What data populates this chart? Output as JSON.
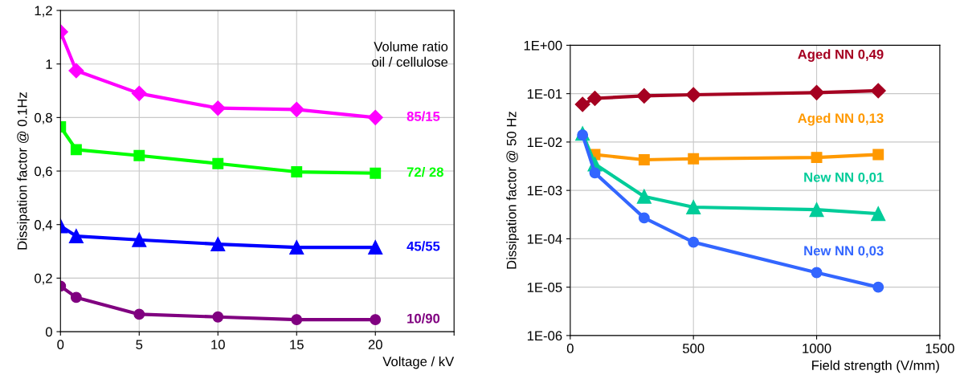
{
  "chart_data": [
    {
      "type": "line",
      "xlabel": "Voltage / kV",
      "ylabel": "Dissipation factor @ 0.1Hz",
      "annotations": [
        "Volume ratio\noil / cellulose"
      ],
      "xlim": [
        0,
        25
      ],
      "xticks": [
        0,
        5,
        10,
        15,
        20,
        {
          "value": 25,
          "label": null
        }
      ],
      "ylim": [
        0,
        1.2
      ],
      "yticks": [
        0,
        {
          "value": 0.2,
          "label": "0,2"
        },
        {
          "value": 0.4,
          "label": "0,4"
        },
        {
          "value": 0.6,
          "label": "0,6"
        },
        {
          "value": 0.8,
          "label": "0,8"
        },
        1,
        {
          "value": 1.2,
          "label": "1,2"
        }
      ],
      "grid": true,
      "legend": false,
      "x": [
        0,
        1,
        5,
        10,
        15,
        20
      ],
      "series": [
        {
          "name": "85/15",
          "color": "#ff00ff",
          "marker": "diamond",
          "values": [
            1.12,
            0.975,
            0.89,
            0.835,
            0.83,
            0.8
          ]
        },
        {
          "name": "72/ 28",
          "color": "#00ff00",
          "marker": "square",
          "values": [
            0.765,
            0.68,
            0.658,
            0.628,
            0.597,
            0.592
          ]
        },
        {
          "name": "45/55",
          "color": "#0000ff",
          "marker": "triangle",
          "values": [
            0.395,
            0.357,
            0.343,
            0.327,
            0.315,
            0.315
          ]
        },
        {
          "name": "10/90",
          "color": "#800080",
          "marker": "circle",
          "values": [
            0.17,
            0.128,
            0.065,
            0.055,
            0.045,
            0.045
          ]
        }
      ]
    },
    {
      "type": "line",
      "xlabel": "Field strength (V/mm)",
      "ylabel": "Dissipation factor @ 50 Hz",
      "log": "y",
      "xlim": [
        0,
        1500
      ],
      "xticks": [
        0,
        500,
        1000,
        1500
      ],
      "ylim": [
        1e-06,
        1
      ],
      "yticks": [
        {
          "value": 1e-06,
          "label": "1E-06"
        },
        {
          "value": 1e-05,
          "label": "1E-05"
        },
        {
          "value": 0.0001,
          "label": "1E-04"
        },
        {
          "value": 0.001,
          "label": "1E-03"
        },
        {
          "value": 0.01,
          "label": "1E-02"
        },
        {
          "value": 0.1,
          "label": "1E-01"
        },
        {
          "value": 1,
          "label": "1E+00"
        }
      ],
      "grid": true,
      "legend": false,
      "series": [
        {
          "name": "Aged NN 0,49",
          "color": "#a50021",
          "marker": "diamond",
          "x": [
            50,
            100,
            300,
            500,
            1000,
            1250
          ],
          "values": [
            0.06,
            0.08,
            0.09,
            0.095,
            0.105,
            0.115
          ]
        },
        {
          "name": "Aged NN 0,13",
          "color": "#ff9900",
          "marker": "square",
          "x": [
            100,
            300,
            500,
            1000,
            1250
          ],
          "values": [
            0.0055,
            0.0043,
            0.0045,
            0.0048,
            0.0055
          ]
        },
        {
          "name": "New NN 0,01",
          "color": "#00cc99",
          "marker": "triangle",
          "x": [
            50,
            100,
            300,
            500,
            1000,
            1250
          ],
          "values": [
            0.015,
            0.0035,
            0.00075,
            0.00045,
            0.0004,
            0.00033
          ]
        },
        {
          "name": "New NN 0,03",
          "color": "#3366ff",
          "marker": "circle",
          "x": [
            50,
            100,
            300,
            500,
            1000,
            1250
          ],
          "values": [
            0.014,
            0.0023,
            0.00027,
            8.5e-05,
            2e-05,
            1e-05
          ]
        }
      ]
    }
  ]
}
